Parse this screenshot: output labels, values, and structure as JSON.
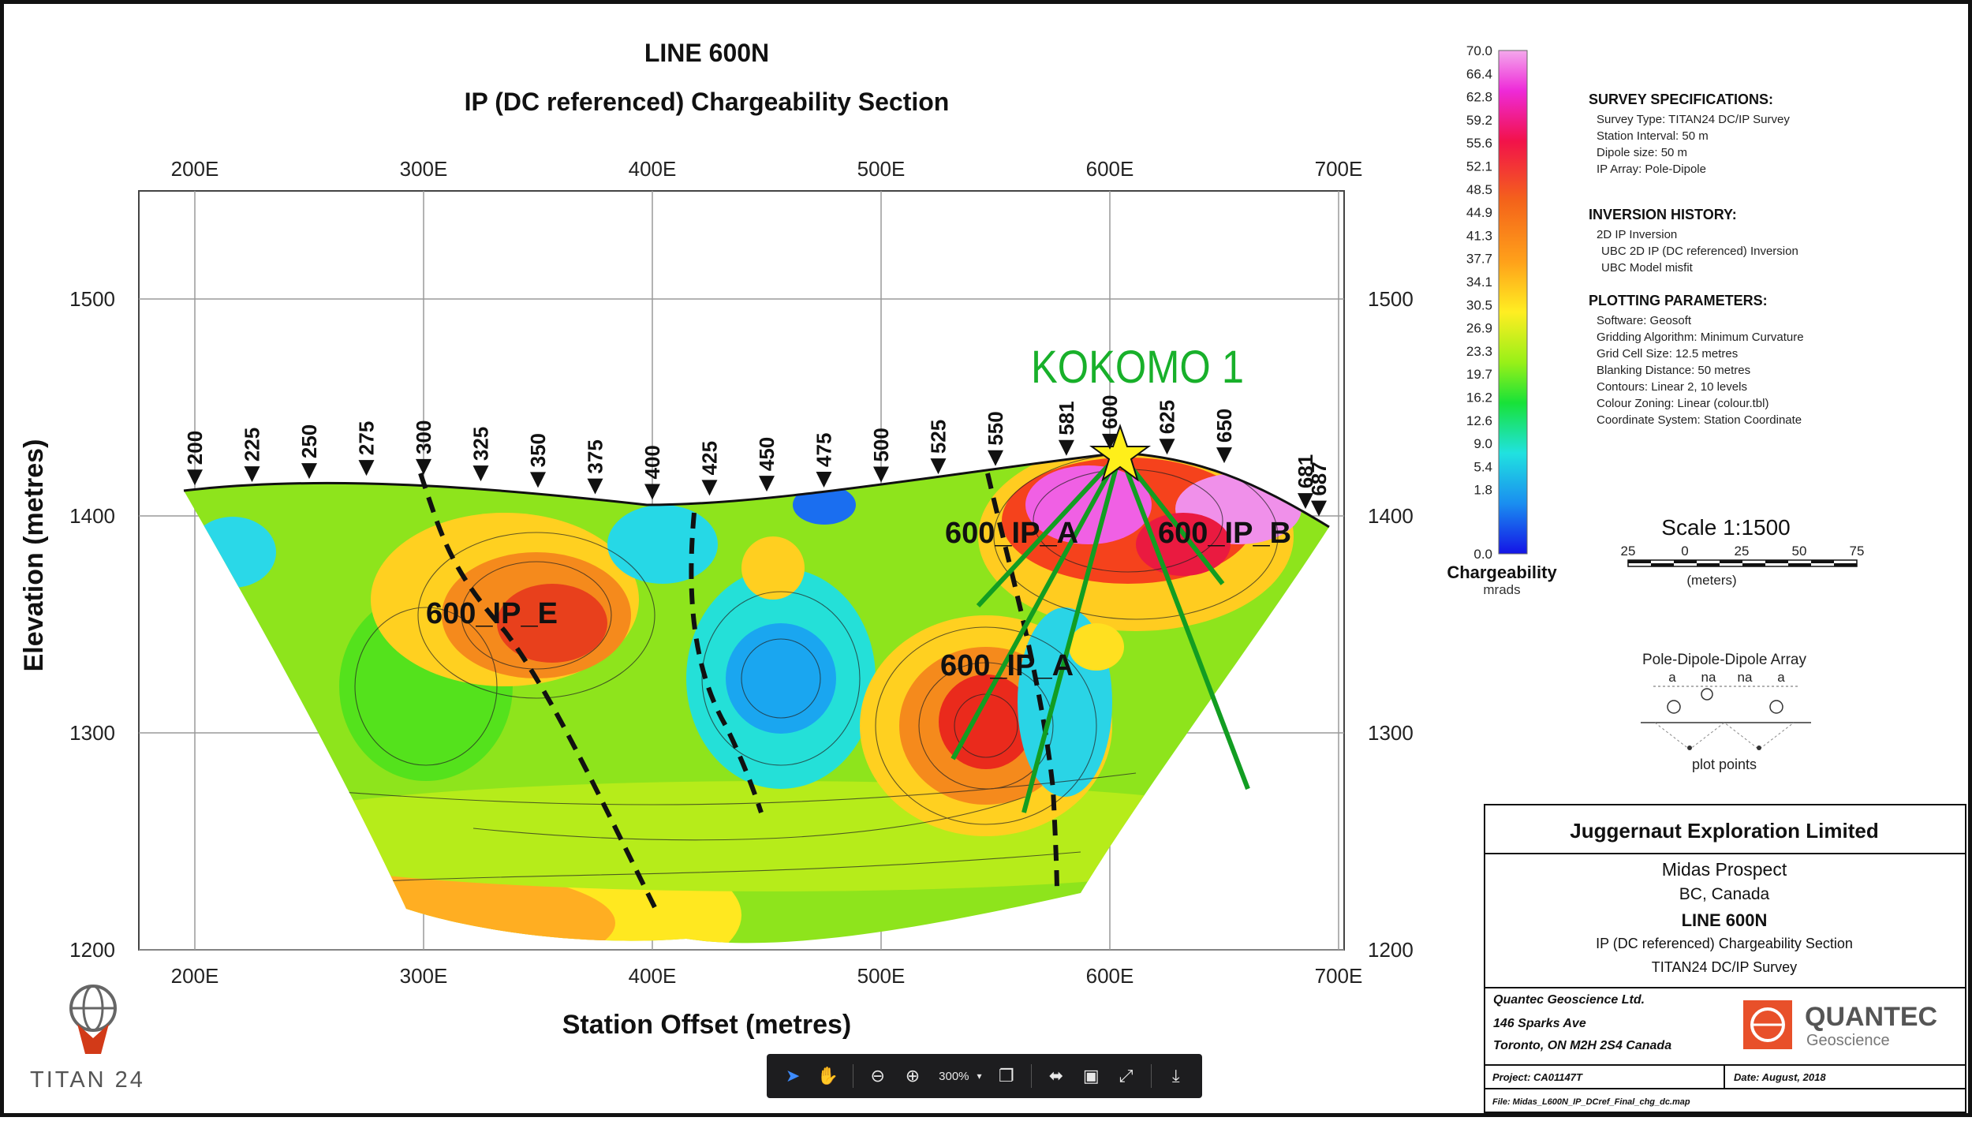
{
  "document": {
    "title": "LINE 600N",
    "subtitle": "IP (DC referenced) Chargeability Section",
    "y_axis_label": "Elevation (metres)",
    "x_axis_label": "Station Offset (metres)",
    "x_ticks": [
      "200E",
      "300E",
      "400E",
      "500E",
      "600E",
      "700E"
    ],
    "y_ticks": [
      "1500",
      "1400",
      "1300",
      "1200"
    ],
    "stations": [
      "200",
      "225",
      "250",
      "275",
      "300",
      "325",
      "350",
      "375",
      "400",
      "425",
      "450",
      "475",
      "500",
      "525",
      "550",
      "581",
      "600",
      "625",
      "650",
      "681",
      "687"
    ],
    "annotations": {
      "drillhole": "KOKOMO 1",
      "ip_a_upper": "600_IP_A",
      "ip_b": "600_IP_B",
      "ip_e": "600_IP_E",
      "ip_a_lower": "600_IP_A"
    }
  },
  "colorbar": {
    "ticks": [
      "70.0",
      "66.4",
      "62.8",
      "59.2",
      "55.6",
      "52.1",
      "48.5",
      "44.9",
      "41.3",
      "37.7",
      "34.1",
      "30.5",
      "26.9",
      "23.3",
      "19.7",
      "16.2",
      "12.6",
      "9.0",
      "5.4",
      "1.8",
      "0.0"
    ],
    "title": "Chargeability",
    "unit": "mrads"
  },
  "specs": {
    "survey_heading": "SURVEY SPECIFICATIONS:",
    "survey_lines": [
      "Survey Type: TITAN24 DC/IP Survey",
      "Station Interval: 50 m",
      "Dipole size: 50 m",
      "IP Array: Pole-Dipole"
    ],
    "inversion_heading": "INVERSION HISTORY:",
    "inversion_lines": [
      "2D IP Inversion",
      "UBC 2D IP (DC referenced) Inversion",
      "UBC Model misfit"
    ],
    "plotting_heading": "PLOTTING PARAMETERS:",
    "plotting_lines": [
      "Software: Geosoft",
      "Gridding Algorithm: Minimum Curvature",
      "Grid Cell Size: 12.5 metres",
      "Blanking Distance: 50 metres",
      "Contours: Linear 2, 10 levels",
      "Colour Zoning: Linear (colour.tbl)",
      "Coordinate System: Station Coordinate"
    ]
  },
  "scale": {
    "title": "Scale 1:1500",
    "ticks": [
      "25",
      "0",
      "25",
      "50",
      "75"
    ],
    "unit": "(meters)"
  },
  "array": {
    "title": "Pole-Dipole-Dipole Array",
    "labels": [
      "a",
      "na",
      "na",
      "a"
    ],
    "footer": "plot points"
  },
  "title_block": {
    "company": "Juggernaut Exploration Limited",
    "prospect": "Midas Prospect",
    "region": "BC, Canada",
    "line": "LINE 600N",
    "section": "IP (DC referenced) Chargeability Section",
    "survey": "TITAN24 DC/IP Survey",
    "contractor": "Quantec Geoscience Ltd.",
    "address1": "146 Sparks Ave",
    "address2": "Toronto, ON M2H 2S4 Canada",
    "logo_text": "QUANTEC",
    "logo_sub": "Geoscience",
    "project": "Project: CA01147T",
    "date": "Date: August, 2018",
    "file": "File: Midas_L600N_IP_DCref_Final_chg_dc.map"
  },
  "titan_logo": "TITAN 24",
  "toolbar": {
    "zoom": "300%"
  }
}
